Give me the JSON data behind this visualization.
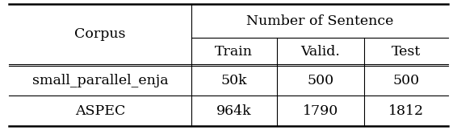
{
  "header_top": "Number of Sentence",
  "header_cols": [
    "Train",
    "Valid.",
    "Test"
  ],
  "row_label_header": "Corpus",
  "rows": [
    {
      "label": "small_parallel_enja",
      "values": [
        "50k",
        "500",
        "500"
      ]
    },
    {
      "label": "ASPEC",
      "values": [
        "964k",
        "1790",
        "1812"
      ]
    }
  ],
  "bg_color": "#ffffff",
  "text_color": "#000000",
  "line_color": "#000000",
  "font_size": 12.5
}
